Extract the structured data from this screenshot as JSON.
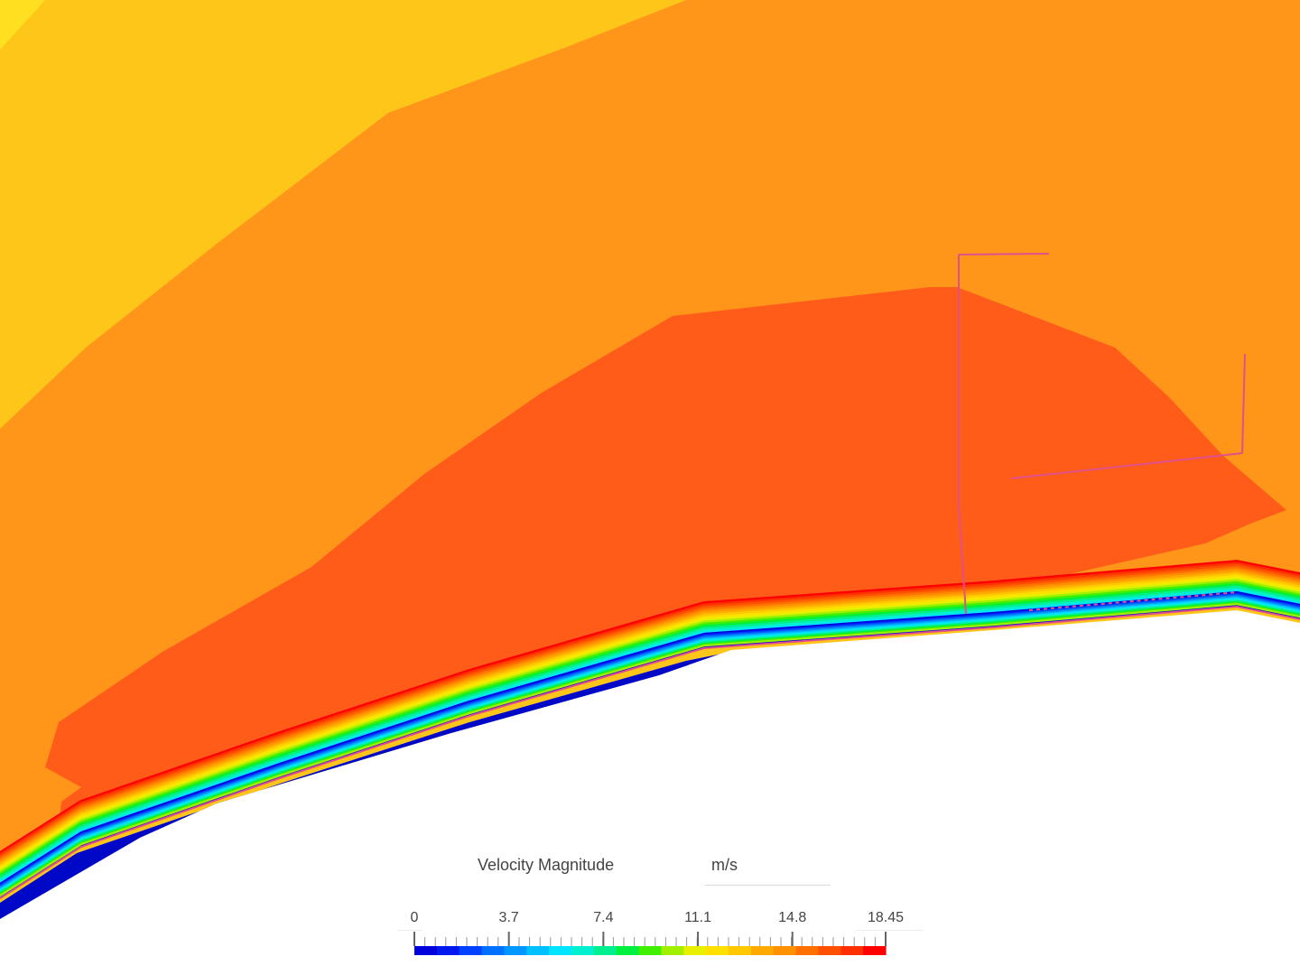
{
  "legend": {
    "title": "Velocity Magnitude",
    "unit": "m/s",
    "range": [
      0,
      18.45
    ],
    "ticks": [
      "0",
      "3.7",
      "7.4",
      "11.1",
      "14.8",
      "18.45"
    ],
    "tick_values": [
      0,
      3.7,
      7.4,
      11.1,
      14.8,
      18.45
    ],
    "colors": [
      "#0000dc",
      "#0018f0",
      "#0040ff",
      "#0070ff",
      "#0098ff",
      "#00c0ff",
      "#00e4ff",
      "#00f0d0",
      "#00f090",
      "#00f040",
      "#40f000",
      "#a0f000",
      "#e8f000",
      "#ffe000",
      "#ffc800",
      "#ffaa00",
      "#ff9000",
      "#ff7000",
      "#ff5000",
      "#ff3000",
      "#ff0000"
    ]
  },
  "field": {
    "zones": {
      "top_yellow": "#ffc61a",
      "upper_orange": "#ff961a",
      "core_red": "#ff5c1a",
      "wall_blue": "#0008c8",
      "probe_line": "#e0508a"
    }
  }
}
